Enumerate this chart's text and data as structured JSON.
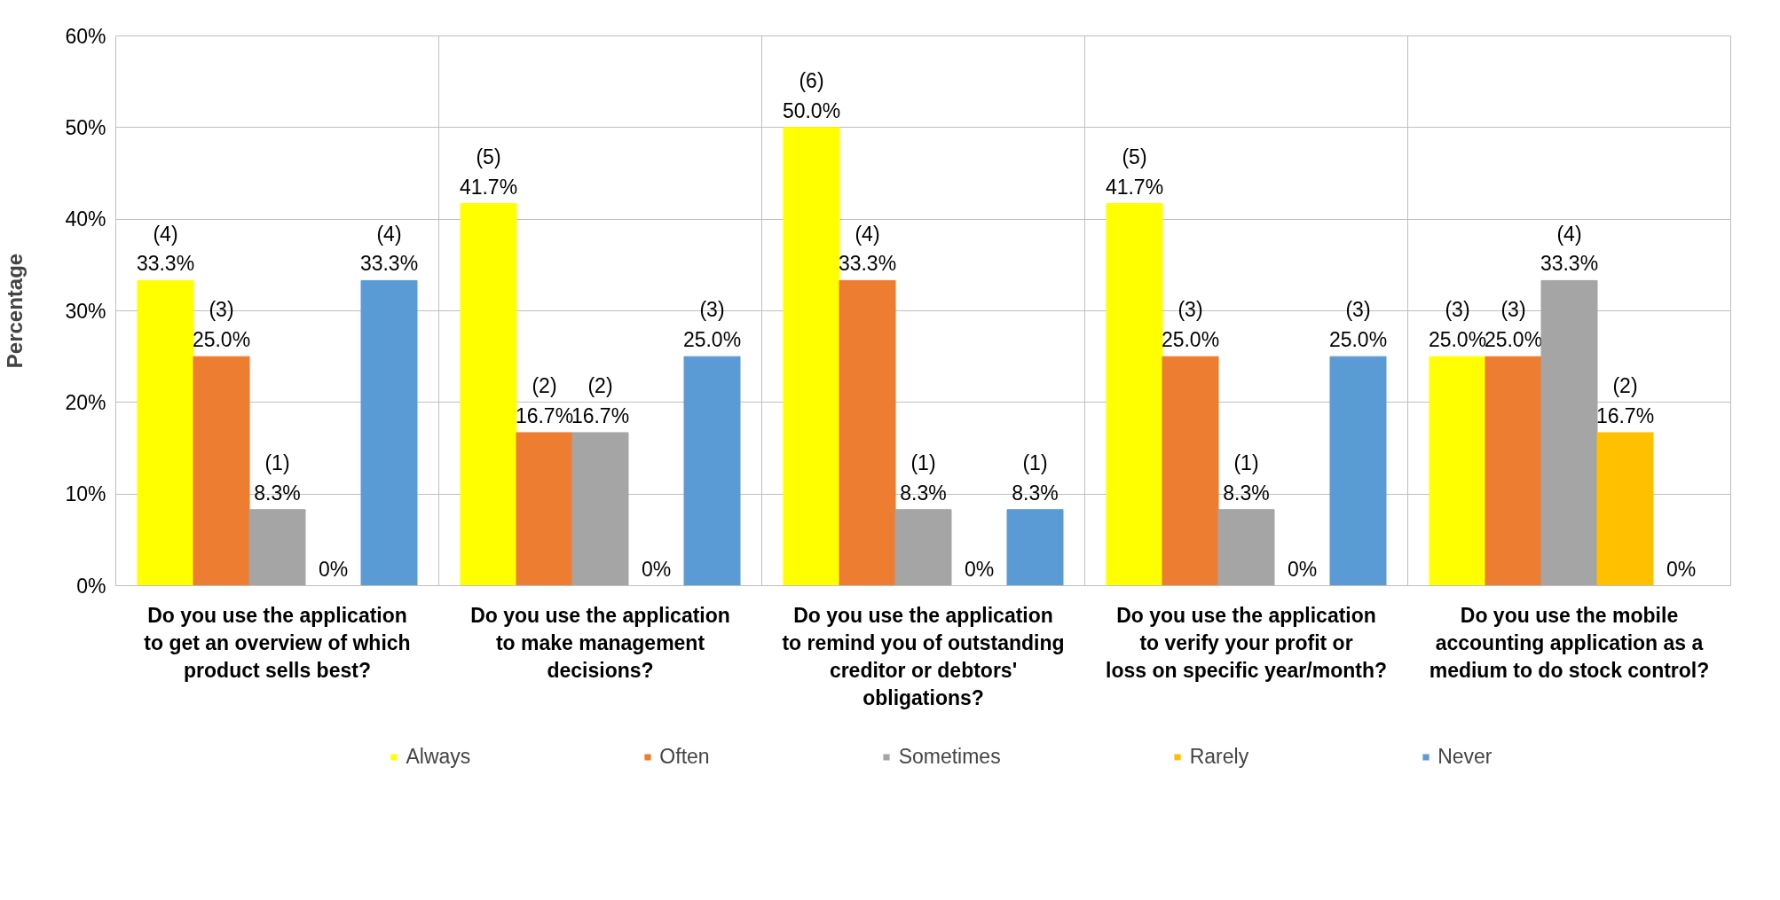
{
  "chart_data": {
    "type": "bar",
    "ylabel": "Percentage",
    "categories": [
      "Do you use the application to get an overview of which product sells best?",
      "Do you use the application to make management decisions?",
      "Do you use the application to remind you of outstanding creditor or debtors' obligations?",
      "Do you use the application to verify your profit or loss on specific year/month?",
      "Do you use the mobile accounting application as a medium to do stock control?"
    ],
    "series": [
      {
        "name": "Always",
        "color": "#ffff00",
        "values": [
          33.3,
          41.7,
          50.0,
          41.7,
          25.0
        ],
        "value_labels": [
          "(4)\n33.3%",
          "(5)\n41.7%",
          "(6)\n50.0%",
          "(5)\n41.7%",
          "(3)\n25.0%"
        ]
      },
      {
        "name": "Often",
        "color": "#ed7d31",
        "values": [
          25.0,
          16.7,
          33.3,
          25.0,
          25.0
        ],
        "value_labels": [
          "(3)\n25.0%",
          "(2)\n16.7%",
          "(4)\n33.3%",
          "(3)\n25.0%",
          "(3)\n25.0%"
        ]
      },
      {
        "name": "Sometimes",
        "color": "#a5a5a5",
        "values": [
          8.3,
          16.7,
          8.3,
          8.3,
          33.3
        ],
        "value_labels": [
          "(1)\n8.3%",
          "(2)\n16.7%",
          "(1)\n8.3%",
          "(1)\n8.3%",
          "(4)\n33.3%"
        ]
      },
      {
        "name": "Rarely",
        "color": "#ffc000",
        "values": [
          0,
          0,
          0,
          0,
          16.7
        ],
        "value_labels": [
          "0%",
          "0%",
          "0%",
          "0%",
          "(2)\n16.7%"
        ]
      },
      {
        "name": "Never",
        "color": "#5b9bd5",
        "values": [
          33.3,
          25.0,
          8.3,
          25.0,
          0
        ],
        "value_labels": [
          "(4)\n33.3%",
          "(3)\n25.0%",
          "(1)\n8.3%",
          "(3)\n25.0%",
          "0%"
        ]
      }
    ],
    "ylim": [
      0,
      60
    ],
    "yticks": [
      {
        "value": 0,
        "label": "0%"
      },
      {
        "value": 10,
        "label": "10%"
      },
      {
        "value": 20,
        "label": "20%"
      },
      {
        "value": 30,
        "label": "30%"
      },
      {
        "value": 40,
        "label": "40%"
      },
      {
        "value": 50,
        "label": "50%"
      },
      {
        "value": 60,
        "label": "60%"
      }
    ],
    "grid": true,
    "legend": "bottom"
  }
}
